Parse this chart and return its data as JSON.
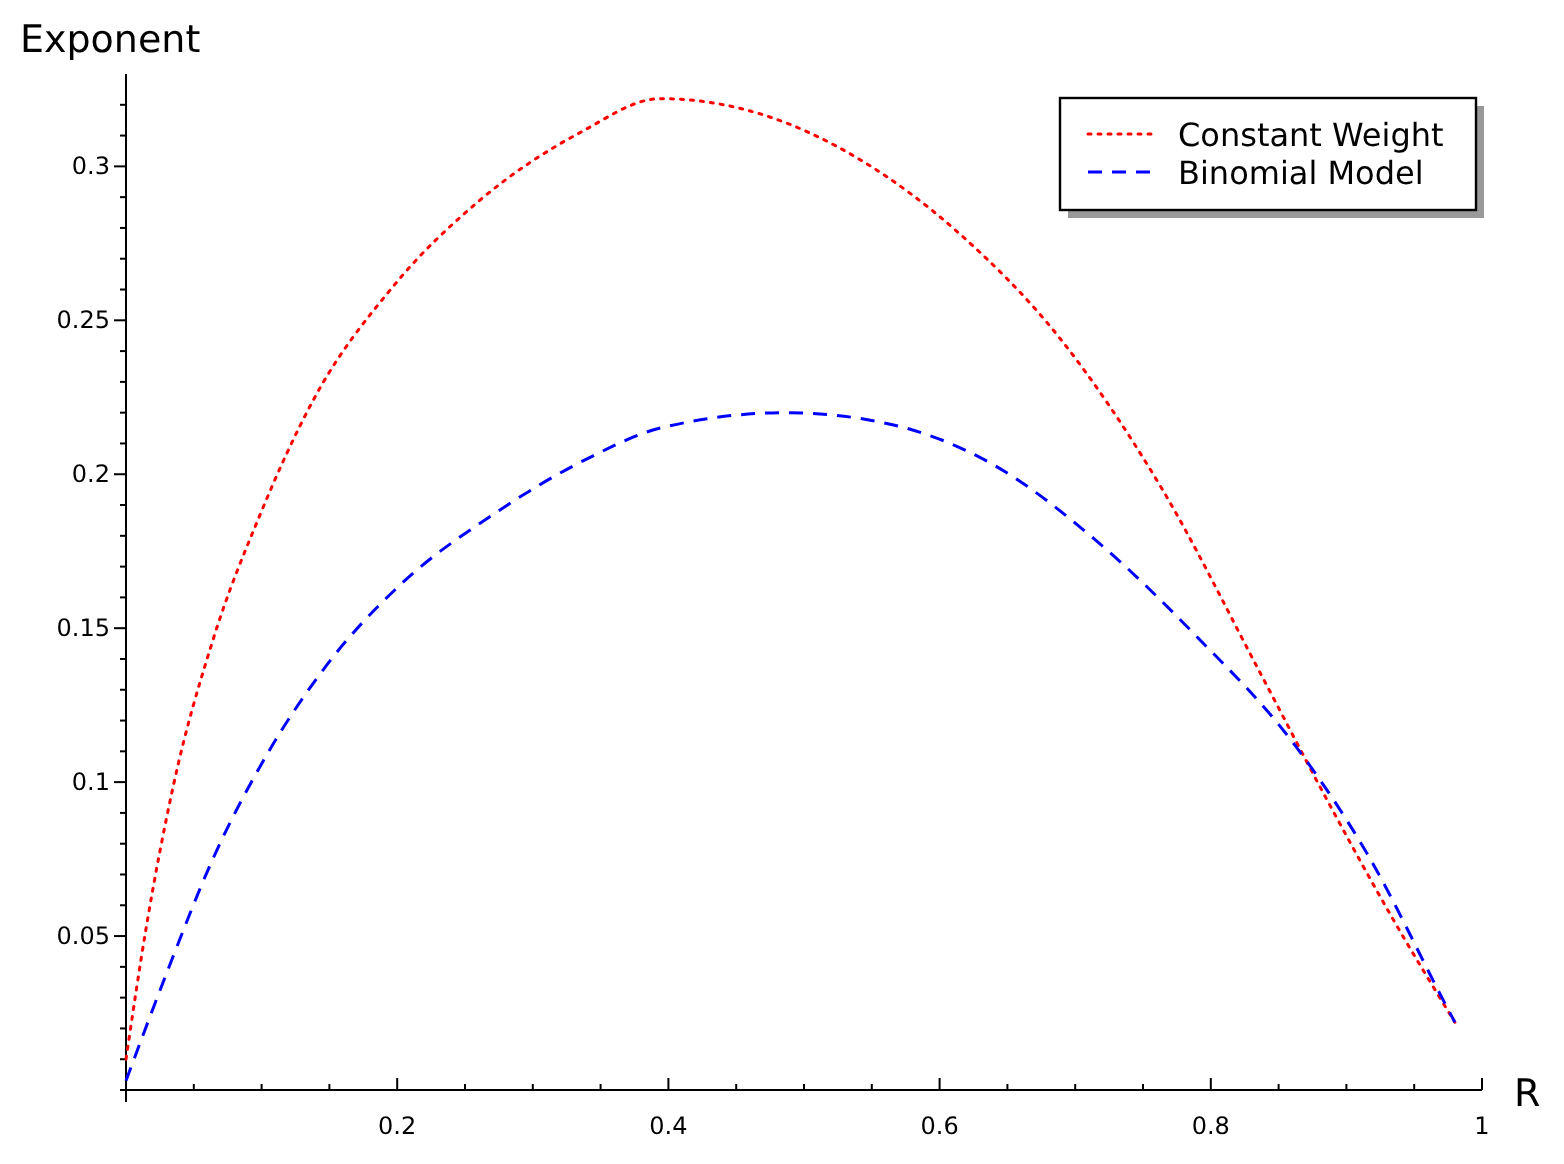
{
  "chart_data": {
    "type": "line",
    "xlabel": "R",
    "ylabel": "Exponent",
    "xlim": [
      0,
      1
    ],
    "ylim": [
      0,
      0.33
    ],
    "xticks": [
      {
        "value": 0,
        "label": null
      },
      {
        "value": 0.05,
        "label": null
      },
      {
        "value": 0.1,
        "label": null
      },
      {
        "value": 0.15,
        "label": null
      },
      0.2,
      {
        "value": 0.25,
        "label": null
      },
      {
        "value": 0.3,
        "label": null
      },
      {
        "value": 0.35,
        "label": null
      },
      0.4,
      {
        "value": 0.45,
        "label": null
      },
      {
        "value": 0.5,
        "label": null
      },
      {
        "value": 0.55,
        "label": null
      },
      0.6,
      {
        "value": 0.65,
        "label": null
      },
      {
        "value": 0.7,
        "label": null
      },
      {
        "value": 0.75,
        "label": null
      },
      0.8,
      {
        "value": 0.85,
        "label": null
      },
      {
        "value": 0.9,
        "label": null
      },
      {
        "value": 0.95,
        "label": null
      },
      1
    ],
    "yticks": [
      {
        "value": 0,
        "label": null
      },
      {
        "value": 0.01,
        "label": null
      },
      {
        "value": 0.02,
        "label": null
      },
      {
        "value": 0.03,
        "label": null
      },
      {
        "value": 0.04,
        "label": null
      },
      0.05,
      {
        "value": 0.06,
        "label": null
      },
      {
        "value": 0.07,
        "label": null
      },
      {
        "value": 0.08,
        "label": null
      },
      {
        "value": 0.09,
        "label": null
      },
      0.1,
      {
        "value": 0.11,
        "label": null
      },
      {
        "value": 0.12,
        "label": null
      },
      {
        "value": 0.13,
        "label": null
      },
      {
        "value": 0.14,
        "label": null
      },
      0.15,
      {
        "value": 0.16,
        "label": null
      },
      {
        "value": 0.17,
        "label": null
      },
      {
        "value": 0.18,
        "label": null
      },
      {
        "value": 0.19,
        "label": null
      },
      0.2,
      {
        "value": 0.21,
        "label": null
      },
      {
        "value": 0.22,
        "label": null
      },
      {
        "value": 0.23,
        "label": null
      },
      {
        "value": 0.24,
        "label": null
      },
      0.25,
      {
        "value": 0.26,
        "label": null
      },
      {
        "value": 0.27,
        "label": null
      },
      {
        "value": 0.28,
        "label": null
      },
      {
        "value": 0.29,
        "label": null
      },
      0.3,
      {
        "value": 0.31,
        "label": null
      },
      {
        "value": 0.32,
        "label": null
      }
    ],
    "legend": "top right",
    "grid": false,
    "series": [
      {
        "name": "Constant Weight",
        "color": "#ff0000",
        "line_style": "dotted",
        "x": [
          0,
          0.015,
          0.035,
          0.064,
          0.099,
          0.138,
          0.197,
          0.261,
          0.335,
          0.394,
          0.468,
          0.542,
          0.615,
          0.689,
          0.763,
          0.837,
          0.886,
          0.935,
          0.98
        ],
        "values": [
          0.01,
          0.053,
          0.099,
          0.146,
          0.187,
          0.224,
          0.261,
          0.289,
          0.311,
          0.322,
          0.317,
          0.302,
          0.278,
          0.244,
          0.196,
          0.135,
          0.094,
          0.055,
          0.022
        ]
      },
      {
        "name": "Binomial Model",
        "color": "#0000ff",
        "line_style": "dashed",
        "x": [
          0,
          0.03,
          0.064,
          0.104,
          0.148,
          0.202,
          0.271,
          0.34,
          0.394,
          0.487,
          0.566,
          0.64,
          0.714,
          0.788,
          0.862,
          0.915,
          0.974,
          0.98
        ],
        "values": [
          0.003,
          0.038,
          0.075,
          0.109,
          0.138,
          0.164,
          0.187,
          0.205,
          0.215,
          0.22,
          0.216,
          0.203,
          0.179,
          0.148,
          0.112,
          0.077,
          0.027,
          0.022
        ]
      }
    ]
  }
}
